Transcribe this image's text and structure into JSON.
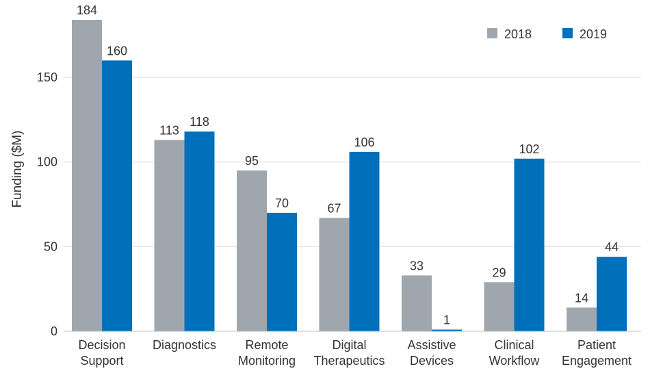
{
  "chart_data": {
    "type": "bar",
    "title": "",
    "xlabel": "",
    "ylabel": "Funding ($M)",
    "ylim": [
      0,
      184
    ],
    "yticks": [
      0,
      50,
      100,
      150
    ],
    "grid": true,
    "legend_position": "top-right",
    "categories": [
      [
        "Decision",
        "Support"
      ],
      [
        "Diagnostics"
      ],
      [
        "Remote",
        "Monitoring"
      ],
      [
        "Digital",
        "Therapeutics"
      ],
      [
        "Assistive",
        "Devices"
      ],
      [
        "Clinical",
        "Workflow"
      ],
      [
        "Patient",
        "Engagement"
      ]
    ],
    "series": [
      {
        "name": "2018",
        "color": "#a0a6ae",
        "values": [
          184,
          113,
          95,
          67,
          33,
          29,
          14
        ]
      },
      {
        "name": "2019",
        "color": "#0070bb",
        "values": [
          160,
          118,
          70,
          106,
          1,
          102,
          44
        ]
      }
    ]
  }
}
